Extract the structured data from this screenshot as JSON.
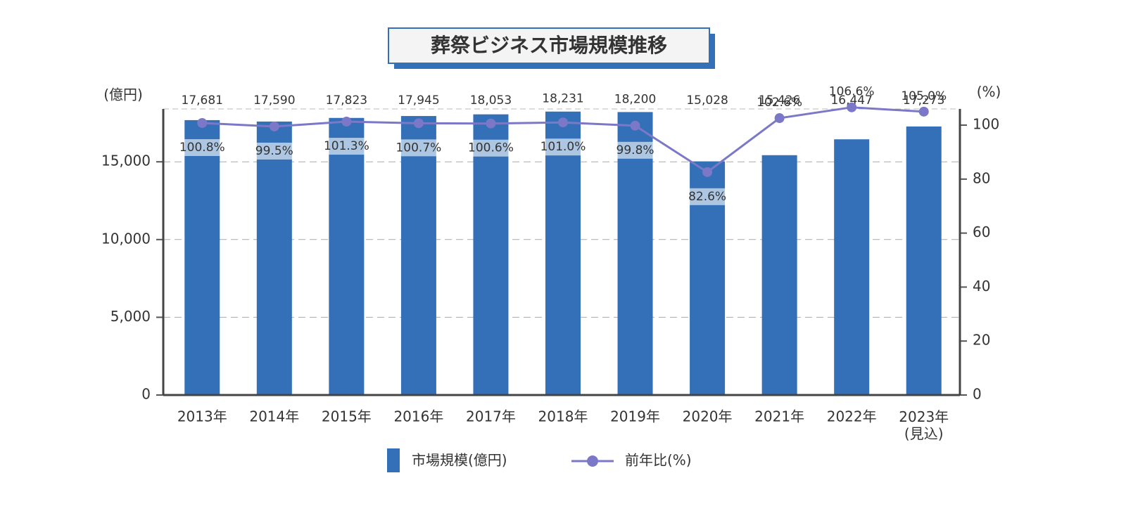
{
  "chart_data": {
    "type": "bar_line",
    "title": "葬祭ビジネス市場規模推移",
    "y_label": "(億円)",
    "y2_label": "(%)",
    "categories": [
      "2013年",
      "2014年",
      "2015年",
      "2016年",
      "2017年",
      "2018年",
      "2019年",
      "2020年",
      "2021年",
      "2022年",
      "2023年\n(見込)"
    ],
    "series": [
      {
        "name": "市場規模(億円)",
        "type": "bar",
        "color": "#3370b7",
        "values": [
          17681,
          17590,
          17823,
          17945,
          18053,
          18231,
          18200,
          15028,
          15426,
          16447,
          17273
        ],
        "value_labels": [
          "17,681",
          "17,590",
          "17,823",
          "17,945",
          "18,053",
          "18,231",
          "18,200",
          "15,028",
          "15,426",
          "16,447",
          "17,273"
        ]
      },
      {
        "name": "前年比(%)",
        "type": "line",
        "axis": "y2",
        "color": "#7b78c8",
        "values": [
          100.8,
          99.5,
          101.3,
          100.7,
          100.6,
          101.0,
          99.8,
          82.6,
          102.6,
          106.6,
          105.0
        ],
        "value_labels": [
          "100.8%",
          "99.5%",
          "101.3%",
          "100.7%",
          "100.6%",
          "101.0%",
          "99.8%",
          "82.6%",
          "102.6%",
          "106.6%",
          "105.0%"
        ]
      }
    ],
    "ylim": [
      0,
      18400
    ],
    "yticks": [
      0,
      {
        "value": 5000,
        "label": "5,000"
      },
      {
        "value": 10000,
        "label": "10,000"
      },
      {
        "value": 15000,
        "label": "15,000"
      }
    ],
    "y2lim": [
      0,
      106
    ],
    "y2ticks": [
      0,
      20,
      40,
      60,
      80,
      100
    ],
    "grid": true,
    "legend": "bottom"
  }
}
